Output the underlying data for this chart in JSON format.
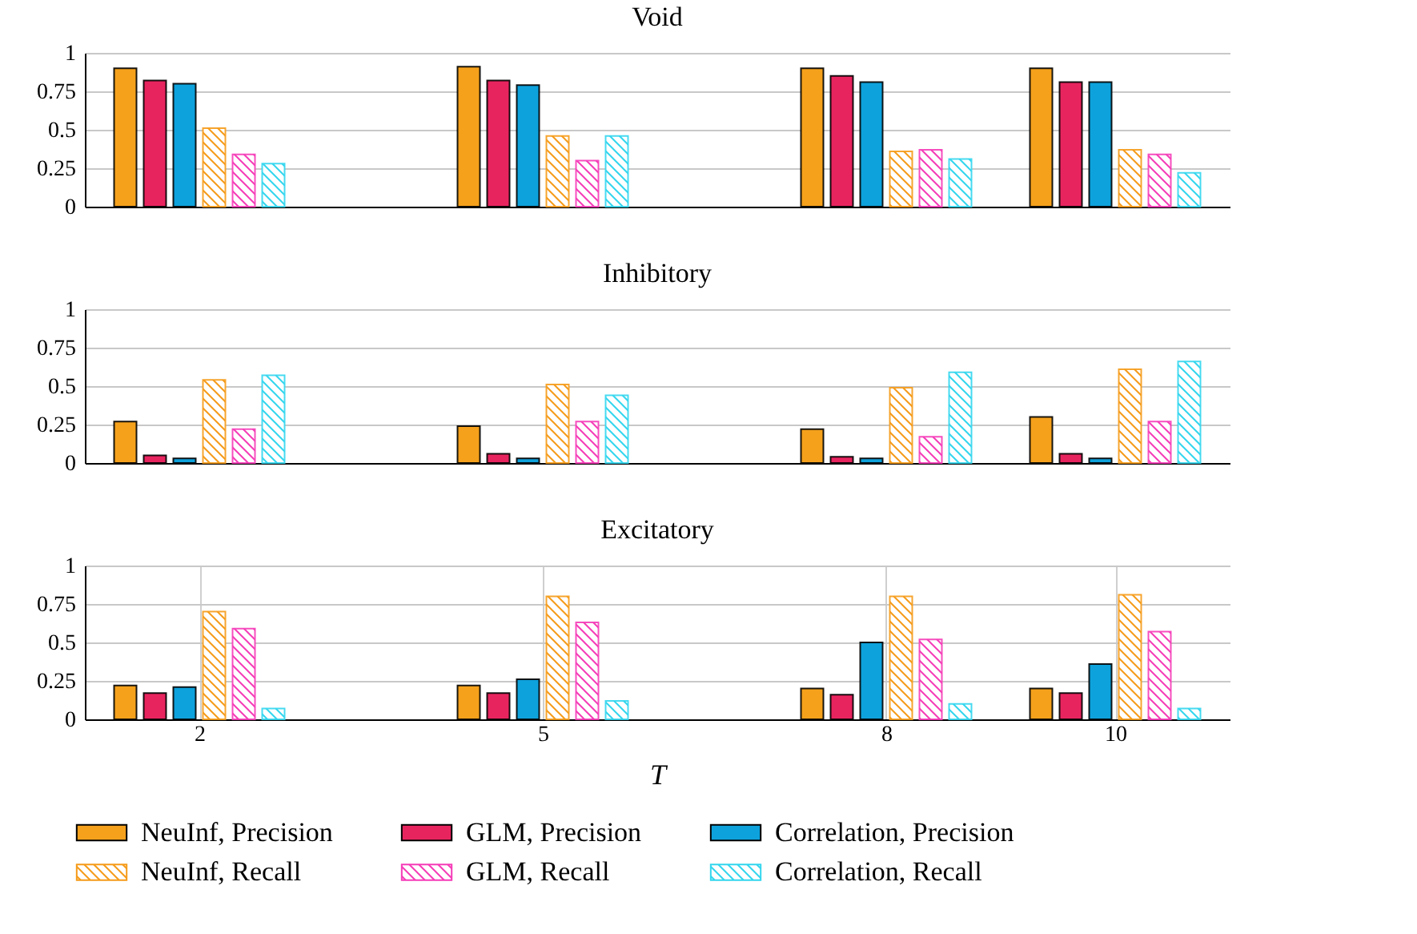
{
  "chart_data": [
    {
      "type": "bar",
      "title": "Void",
      "x": [
        2,
        5,
        8,
        10
      ],
      "xlim": [
        1,
        11
      ],
      "xticks": [
        2,
        5,
        8,
        10
      ],
      "ylim": [
        0,
        1
      ],
      "yticks": [
        0,
        0.25,
        0.5,
        0.75,
        1
      ],
      "grid": "y",
      "tick_labels": "y",
      "series": [
        {
          "color": "#f5a11c",
          "values": [
            0.9,
            0.91,
            0.9,
            0.9
          ]
        },
        {
          "color": "#e8245f",
          "values": [
            0.82,
            0.82,
            0.85,
            0.81
          ]
        },
        {
          "color": "#0ea2dc",
          "values": [
            0.8,
            0.79,
            0.81,
            0.81
          ]
        },
        {
          "color": "#f59b1a",
          "values": [
            0.51,
            0.46,
            0.36,
            0.37
          ]
        },
        {
          "color": "#f53cb8",
          "values": [
            0.34,
            0.3,
            0.37,
            0.34
          ]
        },
        {
          "color": "#33d6ee",
          "values": [
            0.28,
            0.46,
            0.31,
            0.22
          ]
        }
      ]
    },
    {
      "type": "bar",
      "title": "Inhibitory",
      "x": [
        2,
        5,
        8,
        10
      ],
      "xlim": [
        1,
        11
      ],
      "xticks": [
        2,
        5,
        8,
        10
      ],
      "ylim": [
        0,
        1
      ],
      "yticks": [
        0,
        0.25,
        0.5,
        0.75,
        1
      ],
      "grid": "y",
      "tick_labels": "y",
      "series": [
        {
          "color": "#f5a11c",
          "values": [
            0.27,
            0.24,
            0.22,
            0.3
          ]
        },
        {
          "color": "#e8245f",
          "values": [
            0.05,
            0.06,
            0.04,
            0.06
          ]
        },
        {
          "color": "#0ea2dc",
          "values": [
            0.03,
            0.03,
            0.03,
            0.03
          ]
        },
        {
          "color": "#f59b1a",
          "values": [
            0.54,
            0.51,
            0.49,
            0.61
          ]
        },
        {
          "color": "#f53cb8",
          "values": [
            0.22,
            0.27,
            0.17,
            0.27
          ]
        },
        {
          "color": "#33d6ee",
          "values": [
            0.57,
            0.44,
            0.59,
            0.66
          ]
        }
      ]
    },
    {
      "type": "bar",
      "title": "Excitatory",
      "x": [
        2,
        5,
        8,
        10
      ],
      "xlim": [
        1,
        11
      ],
      "xticks": [
        2,
        5,
        8,
        10
      ],
      "ylim": [
        0,
        1
      ],
      "yticks": [
        0,
        0.25,
        0.5,
        0.75,
        1
      ],
      "grid": true,
      "xlabel": "T",
      "legend": "bottom",
      "series": [
        {
          "name": "NeuInf, Precision",
          "color": "#f5a11c",
          "values": [
            0.22,
            0.22,
            0.2,
            0.2
          ]
        },
        {
          "name": "GLM, Precision",
          "color": "#e8245f",
          "values": [
            0.17,
            0.17,
            0.16,
            0.17
          ]
        },
        {
          "name": "Correlation, Precision",
          "color": "#0ea2dc",
          "values": [
            0.21,
            0.26,
            0.5,
            0.36
          ]
        },
        {
          "name": "NeuInf, Recall",
          "color": "#f59b1a",
          "values": [
            0.7,
            0.8,
            0.8,
            0.81
          ]
        },
        {
          "name": "GLM, Recall",
          "color": "#f53cb8",
          "values": [
            0.59,
            0.63,
            0.52,
            0.57
          ]
        },
        {
          "name": "Correlation, Recall",
          "color": "#33d6ee",
          "values": [
            0.07,
            0.12,
            0.1,
            0.07
          ]
        }
      ]
    }
  ]
}
